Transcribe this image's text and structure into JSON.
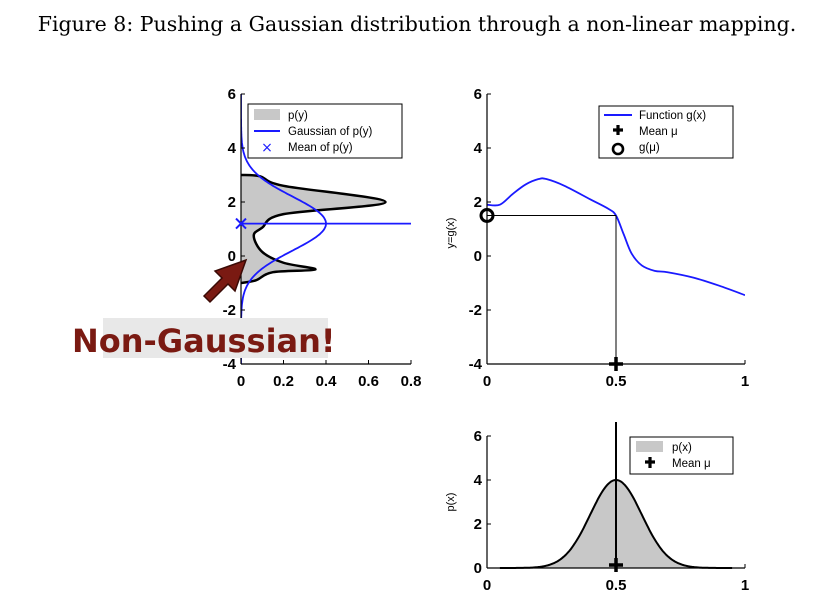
{
  "caption": "Figure 8: Pushing a Gaussian distribution through a non-linear mapping.",
  "callout": "Non-Gaussian!",
  "colors": {
    "curve": "#1a1aff",
    "fill": "#c8c8c8",
    "callout_text": "#7a1a12",
    "arrow": "#7a1a12",
    "callout_bg": "#e8e8e8"
  },
  "chart_data": [
    {
      "id": "py",
      "type": "area",
      "xlim": [
        0,
        0.8
      ],
      "ylim": [
        -4,
        6
      ],
      "xticks": [
        "0",
        "0.2",
        "0.4",
        "0.6",
        "0.8"
      ],
      "yticks": [
        "-4",
        "-2",
        "0",
        "2",
        "4",
        "6"
      ],
      "legend": {
        "position": "top-right",
        "entries": [
          "p(y)",
          "Gaussian of p(y)",
          "Mean of p(y)"
        ]
      },
      "py_upper_peak": [
        0.68,
        2.0
      ],
      "py_lower_peak": [
        0.35,
        -0.5
      ],
      "py_trough": [
        0.06,
        0.75
      ],
      "gaussian_mean": 1.2,
      "gaussian_std": 1.0,
      "gaussian_peak": 0.4,
      "mean_marker": [
        0,
        1.2
      ]
    },
    {
      "id": "gx",
      "type": "line",
      "xlim": [
        0,
        1
      ],
      "ylim": [
        -4,
        6
      ],
      "xticks": [
        "0",
        "0.5",
        "1"
      ],
      "yticks": [
        "-4",
        "-2",
        "0",
        "2",
        "4",
        "6"
      ],
      "ylabel": "y=g(x)",
      "legend": {
        "position": "top-right",
        "entries": [
          "Function g(x)",
          "Mean μ",
          "g(μ)"
        ]
      },
      "x": [
        0,
        0.05,
        0.1,
        0.15,
        0.2,
        0.23,
        0.3,
        0.4,
        0.47,
        0.5,
        0.53,
        0.56,
        0.6,
        0.65,
        0.7,
        0.8,
        0.9,
        1.0
      ],
      "y": [
        1.9,
        1.9,
        2.3,
        2.65,
        2.85,
        2.85,
        2.6,
        2.1,
        1.75,
        1.5,
        0.8,
        0.1,
        -0.35,
        -0.55,
        -0.6,
        -0.8,
        -1.1,
        -1.45
      ],
      "mean_mu": [
        0.5,
        -4
      ],
      "g_mu": [
        0,
        1.5
      ]
    },
    {
      "id": "px",
      "type": "area",
      "xlim": [
        0,
        1
      ],
      "ylim": [
        0,
        6
      ],
      "xticks": [
        "0",
        "0.5",
        "1"
      ],
      "yticks": [
        "0",
        "2",
        "4",
        "6"
      ],
      "ylabel": "p(x)",
      "legend": {
        "position": "top-right",
        "entries": [
          "p(x)",
          "Mean μ"
        ]
      },
      "mean": 0.5,
      "std": 0.1,
      "peak": 4.0,
      "mean_marker": [
        0.5,
        0
      ]
    }
  ]
}
